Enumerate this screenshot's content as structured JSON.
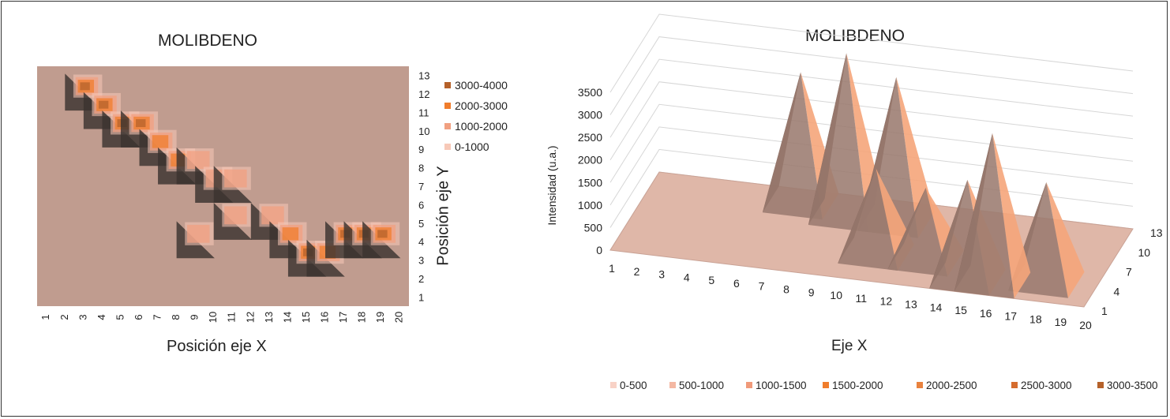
{
  "chart_data": [
    {
      "type": "heatmap",
      "title": "MOLIBDENO",
      "xlabel": "Posición eje X",
      "ylabel": "Posición eje Y",
      "x": [
        1,
        2,
        3,
        4,
        5,
        6,
        7,
        8,
        9,
        10,
        11,
        12,
        13,
        14,
        15,
        16,
        17,
        18,
        19,
        20
      ],
      "y": [
        1,
        2,
        3,
        4,
        5,
        6,
        7,
        8,
        9,
        10,
        11,
        12,
        13
      ],
      "grid": false,
      "legend_position": "right",
      "legend": [
        "3000-4000",
        "2000-3000",
        "1000-2000",
        "0-1000"
      ],
      "bands": [
        {
          "range": "3000-4000",
          "color": "#b5612a"
        },
        {
          "range": "2000-3000",
          "color": "#f07d2c"
        },
        {
          "range": "1000-2000",
          "color": "#f1a081"
        },
        {
          "range": "0-1000",
          "color": "#f7c9b8"
        }
      ],
      "background_color": "#c09c8f",
      "peaks": [
        {
          "x": 3,
          "y": 12,
          "value": 3200
        },
        {
          "x": 4,
          "y": 11,
          "value": 3500
        },
        {
          "x": 5,
          "y": 10,
          "value": 3400
        },
        {
          "x": 6,
          "y": 10,
          "value": 3300
        },
        {
          "x": 7,
          "y": 9,
          "value": 2800
        },
        {
          "x": 8,
          "y": 8,
          "value": 2600
        },
        {
          "x": 9,
          "y": 8,
          "value": 2000
        },
        {
          "x": 10,
          "y": 7,
          "value": 1800
        },
        {
          "x": 11,
          "y": 7,
          "value": 1500
        },
        {
          "x": 9,
          "y": 4,
          "value": 1500
        },
        {
          "x": 11,
          "y": 5,
          "value": 1300
        },
        {
          "x": 13,
          "y": 5,
          "value": 1500
        },
        {
          "x": 14,
          "y": 4,
          "value": 2200
        },
        {
          "x": 15,
          "y": 3,
          "value": 3400
        },
        {
          "x": 16,
          "y": 3,
          "value": 3000
        },
        {
          "x": 17,
          "y": 4,
          "value": 3100
        },
        {
          "x": 18,
          "y": 4,
          "value": 3100
        },
        {
          "x": 19,
          "y": 4,
          "value": 3100
        }
      ]
    },
    {
      "type": "area",
      "title": "MOLIBDENO",
      "xlabel": "Eje X",
      "ylabel": "Intensidad (u.a.)",
      "x_ticks": [
        1,
        2,
        3,
        4,
        5,
        6,
        7,
        8,
        9,
        10,
        11,
        12,
        13,
        14,
        15,
        16,
        17,
        18,
        19,
        20
      ],
      "z_ticks": [
        1,
        4,
        7,
        10,
        13
      ],
      "y_ticks": [
        0,
        500,
        1000,
        1500,
        2000,
        2500,
        3000,
        3500
      ],
      "ylim": [
        0,
        3500
      ],
      "legend_position": "bottom",
      "legend": [
        "0-500",
        "500-1000",
        "1000-1500",
        "1500-2000",
        "2000-2500",
        "2500-3000",
        "3000-3500"
      ],
      "bands": [
        {
          "range": "0-500",
          "color": "#f8d2c6"
        },
        {
          "range": "500-1000",
          "color": "#f4b8a3"
        },
        {
          "range": "1000-1500",
          "color": "#f09a7a"
        },
        {
          "range": "1500-2000",
          "color": "#f07d2c"
        },
        {
          "range": "2000-2500",
          "color": "#e9823e"
        },
        {
          "range": "2500-3000",
          "color": "#d56c2e"
        },
        {
          "range": "3000-3500",
          "color": "#b5612a"
        }
      ],
      "peaks": [
        {
          "x": 7,
          "y": 11,
          "value": 2900
        },
        {
          "x": 9,
          "y": 10,
          "value": 3600
        },
        {
          "x": 11,
          "y": 10,
          "value": 3200
        },
        {
          "x": 11,
          "y": 5,
          "value": 1900
        },
        {
          "x": 13,
          "y": 5,
          "value": 1600
        },
        {
          "x": 15,
          "y": 3,
          "value": 2200
        },
        {
          "x": 16,
          "y": 3,
          "value": 3300
        },
        {
          "x": 18,
          "y": 4,
          "value": 2200
        }
      ]
    }
  ]
}
